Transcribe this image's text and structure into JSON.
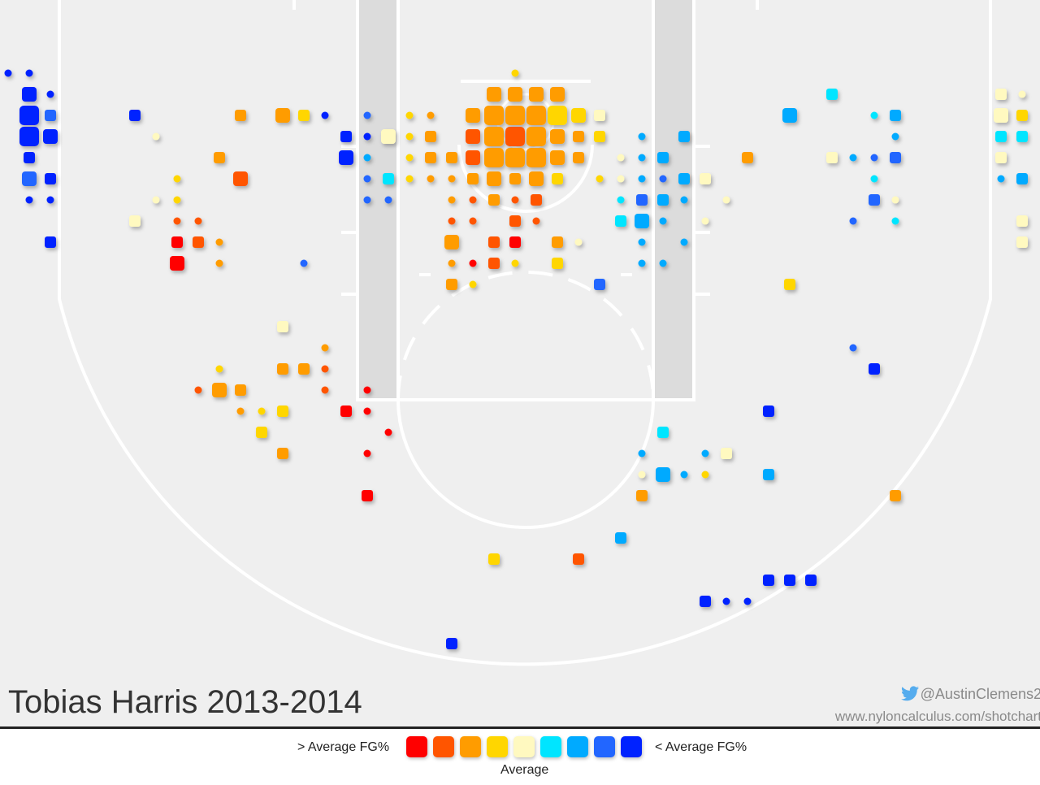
{
  "title": "Tobias Harris 2013-2014",
  "credits": {
    "twitter": "@AustinClemens2",
    "website": "www.nyloncalculus.com/shotchart"
  },
  "legend": {
    "high_label": "> Average FG%",
    "low_label": "< Average FG%",
    "mid_label": "Average"
  },
  "colors": {
    "scale": [
      "#ff0000",
      "#ff5500",
      "#ff9c00",
      "#ffd600",
      "#fff9c0",
      "#00e5ff",
      "#00aaff",
      "#2266ff",
      "#0022ff"
    ],
    "court_background": "#efefef",
    "paint": "#dcdcdc",
    "lines": "#ffffff"
  },
  "chart_data": {
    "type": "scatter",
    "description": "Hexbin-style shot chart; each mark is a shot zone. color = FG% bucket index (0 = well above average, 4 = average, 8 = well below average); size = shot-frequency bucket (0 smallest, 3 largest). x/y given in court grid units (x: 0-48 across the court, y: 0-34 from baseline toward half court).",
    "x_range": [
      0,
      48
    ],
    "y_range": [
      0,
      34
    ],
    "points": [
      {
        "x": 0,
        "y": 3,
        "c": 8,
        "s": 0
      },
      {
        "x": 1,
        "y": 3,
        "c": 8,
        "s": 0
      },
      {
        "x": 1,
        "y": 4,
        "c": 8,
        "s": 2
      },
      {
        "x": 2,
        "y": 4,
        "c": 8,
        "s": 0
      },
      {
        "x": 1,
        "y": 5,
        "c": 8,
        "s": 3
      },
      {
        "x": 2,
        "y": 5,
        "c": 7,
        "s": 1
      },
      {
        "x": 1,
        "y": 6,
        "c": 8,
        "s": 3
      },
      {
        "x": 2,
        "y": 6,
        "c": 8,
        "s": 2
      },
      {
        "x": 1,
        "y": 7,
        "c": 8,
        "s": 1
      },
      {
        "x": 1,
        "y": 8,
        "c": 7,
        "s": 2
      },
      {
        "x": 2,
        "y": 8,
        "c": 8,
        "s": 1
      },
      {
        "x": 1,
        "y": 9,
        "c": 8,
        "s": 0
      },
      {
        "x": 2,
        "y": 9,
        "c": 8,
        "s": 0
      },
      {
        "x": 2,
        "y": 11,
        "c": 8,
        "s": 1
      },
      {
        "x": 6,
        "y": 5,
        "c": 8,
        "s": 1
      },
      {
        "x": 7,
        "y": 6,
        "c": 4,
        "s": 0
      },
      {
        "x": 6,
        "y": 10,
        "c": 4,
        "s": 1
      },
      {
        "x": 7,
        "y": 9,
        "c": 4,
        "s": 0
      },
      {
        "x": 8,
        "y": 8,
        "c": 3,
        "s": 0
      },
      {
        "x": 8,
        "y": 9,
        "c": 3,
        "s": 0
      },
      {
        "x": 8,
        "y": 10,
        "c": 1,
        "s": 0
      },
      {
        "x": 9,
        "y": 10,
        "c": 1,
        "s": 0
      },
      {
        "x": 8,
        "y": 11,
        "c": 0,
        "s": 1
      },
      {
        "x": 9,
        "y": 11,
        "c": 1,
        "s": 1
      },
      {
        "x": 8,
        "y": 12,
        "c": 0,
        "s": 2
      },
      {
        "x": 10,
        "y": 11,
        "c": 2,
        "s": 0
      },
      {
        "x": 10,
        "y": 12,
        "c": 2,
        "s": 0
      },
      {
        "x": 10,
        "y": 7,
        "c": 2,
        "s": 1
      },
      {
        "x": 11,
        "y": 5,
        "c": 2,
        "s": 1
      },
      {
        "x": 11,
        "y": 8,
        "c": 1,
        "s": 2
      },
      {
        "x": 13,
        "y": 5,
        "c": 2,
        "s": 2
      },
      {
        "x": 14,
        "y": 5,
        "c": 3,
        "s": 1
      },
      {
        "x": 15,
        "y": 5,
        "c": 8,
        "s": 0
      },
      {
        "x": 14,
        "y": 12,
        "c": 7,
        "s": 0
      },
      {
        "x": 16,
        "y": 6,
        "c": 8,
        "s": 1
      },
      {
        "x": 16,
        "y": 7,
        "c": 8,
        "s": 2
      },
      {
        "x": 17,
        "y": 5,
        "c": 7,
        "s": 0
      },
      {
        "x": 17,
        "y": 6,
        "c": 8,
        "s": 0
      },
      {
        "x": 17,
        "y": 7,
        "c": 6,
        "s": 0
      },
      {
        "x": 17,
        "y": 8,
        "c": 7,
        "s": 0
      },
      {
        "x": 17,
        "y": 9,
        "c": 7,
        "s": 0
      },
      {
        "x": 18,
        "y": 6,
        "c": 4,
        "s": 2
      },
      {
        "x": 18,
        "y": 8,
        "c": 5,
        "s": 1
      },
      {
        "x": 18,
        "y": 9,
        "c": 7,
        "s": 0
      },
      {
        "x": 19,
        "y": 5,
        "c": 3,
        "s": 0
      },
      {
        "x": 19,
        "y": 6,
        "c": 3,
        "s": 0
      },
      {
        "x": 19,
        "y": 7,
        "c": 3,
        "s": 0
      },
      {
        "x": 19,
        "y": 8,
        "c": 3,
        "s": 0
      },
      {
        "x": 20,
        "y": 5,
        "c": 2,
        "s": 0
      },
      {
        "x": 20,
        "y": 6,
        "c": 2,
        "s": 1
      },
      {
        "x": 20,
        "y": 7,
        "c": 2,
        "s": 1
      },
      {
        "x": 20,
        "y": 8,
        "c": 2,
        "s": 0
      },
      {
        "x": 21,
        "y": 7,
        "c": 2,
        "s": 1
      },
      {
        "x": 21,
        "y": 8,
        "c": 2,
        "s": 0
      },
      {
        "x": 21,
        "y": 9,
        "c": 2,
        "s": 0
      },
      {
        "x": 21,
        "y": 10,
        "c": 1,
        "s": 0
      },
      {
        "x": 21,
        "y": 11,
        "c": 2,
        "s": 2
      },
      {
        "x": 21,
        "y": 12,
        "c": 2,
        "s": 0
      },
      {
        "x": 21,
        "y": 13,
        "c": 2,
        "s": 1
      },
      {
        "x": 22,
        "y": 5,
        "c": 2,
        "s": 2
      },
      {
        "x": 22,
        "y": 6,
        "c": 1,
        "s": 2
      },
      {
        "x": 22,
        "y": 7,
        "c": 1,
        "s": 2
      },
      {
        "x": 22,
        "y": 8,
        "c": 2,
        "s": 1
      },
      {
        "x": 22,
        "y": 9,
        "c": 1,
        "s": 0
      },
      {
        "x": 22,
        "y": 10,
        "c": 1,
        "s": 0
      },
      {
        "x": 22,
        "y": 12,
        "c": 0,
        "s": 0
      },
      {
        "x": 22,
        "y": 13,
        "c": 3,
        "s": 0
      },
      {
        "x": 23,
        "y": 4,
        "c": 2,
        "s": 2
      },
      {
        "x": 23,
        "y": 5,
        "c": 2,
        "s": 3
      },
      {
        "x": 23,
        "y": 6,
        "c": 2,
        "s": 3
      },
      {
        "x": 23,
        "y": 7,
        "c": 2,
        "s": 3
      },
      {
        "x": 23,
        "y": 8,
        "c": 2,
        "s": 2
      },
      {
        "x": 23,
        "y": 9,
        "c": 2,
        "s": 1
      },
      {
        "x": 23,
        "y": 11,
        "c": 1,
        "s": 1
      },
      {
        "x": 23,
        "y": 12,
        "c": 1,
        "s": 1
      },
      {
        "x": 24,
        "y": 3,
        "c": 3,
        "s": 0
      },
      {
        "x": 24,
        "y": 4,
        "c": 2,
        "s": 2
      },
      {
        "x": 24,
        "y": 5,
        "c": 2,
        "s": 3
      },
      {
        "x": 24,
        "y": 6,
        "c": 1,
        "s": 3
      },
      {
        "x": 24,
        "y": 7,
        "c": 2,
        "s": 3
      },
      {
        "x": 24,
        "y": 8,
        "c": 2,
        "s": 1
      },
      {
        "x": 24,
        "y": 9,
        "c": 1,
        "s": 0
      },
      {
        "x": 24,
        "y": 10,
        "c": 1,
        "s": 1
      },
      {
        "x": 24,
        "y": 11,
        "c": 0,
        "s": 1
      },
      {
        "x": 24,
        "y": 12,
        "c": 3,
        "s": 0
      },
      {
        "x": 25,
        "y": 4,
        "c": 2,
        "s": 2
      },
      {
        "x": 25,
        "y": 5,
        "c": 2,
        "s": 3
      },
      {
        "x": 25,
        "y": 6,
        "c": 2,
        "s": 3
      },
      {
        "x": 25,
        "y": 7,
        "c": 2,
        "s": 3
      },
      {
        "x": 25,
        "y": 8,
        "c": 2,
        "s": 2
      },
      {
        "x": 25,
        "y": 9,
        "c": 1,
        "s": 1
      },
      {
        "x": 25,
        "y": 10,
        "c": 1,
        "s": 0
      },
      {
        "x": 26,
        "y": 4,
        "c": 2,
        "s": 2
      },
      {
        "x": 26,
        "y": 5,
        "c": 3,
        "s": 3
      },
      {
        "x": 26,
        "y": 6,
        "c": 2,
        "s": 2
      },
      {
        "x": 26,
        "y": 7,
        "c": 2,
        "s": 2
      },
      {
        "x": 26,
        "y": 8,
        "c": 3,
        "s": 1
      },
      {
        "x": 26,
        "y": 11,
        "c": 2,
        "s": 1
      },
      {
        "x": 26,
        "y": 12,
        "c": 3,
        "s": 1
      },
      {
        "x": 27,
        "y": 5,
        "c": 3,
        "s": 2
      },
      {
        "x": 27,
        "y": 6,
        "c": 2,
        "s": 1
      },
      {
        "x": 27,
        "y": 7,
        "c": 2,
        "s": 1
      },
      {
        "x": 27,
        "y": 11,
        "c": 4,
        "s": 0
      },
      {
        "x": 28,
        "y": 5,
        "c": 4,
        "s": 1
      },
      {
        "x": 28,
        "y": 6,
        "c": 3,
        "s": 1
      },
      {
        "x": 28,
        "y": 8,
        "c": 3,
        "s": 0
      },
      {
        "x": 28,
        "y": 13,
        "c": 7,
        "s": 1
      },
      {
        "x": 29,
        "y": 7,
        "c": 4,
        "s": 0
      },
      {
        "x": 29,
        "y": 8,
        "c": 4,
        "s": 0
      },
      {
        "x": 29,
        "y": 9,
        "c": 5,
        "s": 0
      },
      {
        "x": 29,
        "y": 10,
        "c": 5,
        "s": 1
      },
      {
        "x": 30,
        "y": 6,
        "c": 6,
        "s": 0
      },
      {
        "x": 30,
        "y": 7,
        "c": 6,
        "s": 0
      },
      {
        "x": 30,
        "y": 8,
        "c": 6,
        "s": 0
      },
      {
        "x": 30,
        "y": 9,
        "c": 7,
        "s": 1
      },
      {
        "x": 30,
        "y": 10,
        "c": 6,
        "s": 2
      },
      {
        "x": 30,
        "y": 11,
        "c": 6,
        "s": 0
      },
      {
        "x": 30,
        "y": 12,
        "c": 6,
        "s": 0
      },
      {
        "x": 31,
        "y": 7,
        "c": 6,
        "s": 1
      },
      {
        "x": 31,
        "y": 8,
        "c": 7,
        "s": 0
      },
      {
        "x": 31,
        "y": 9,
        "c": 6,
        "s": 1
      },
      {
        "x": 31,
        "y": 10,
        "c": 6,
        "s": 0
      },
      {
        "x": 31,
        "y": 12,
        "c": 6,
        "s": 0
      },
      {
        "x": 32,
        "y": 6,
        "c": 6,
        "s": 1
      },
      {
        "x": 32,
        "y": 8,
        "c": 6,
        "s": 1
      },
      {
        "x": 32,
        "y": 9,
        "c": 6,
        "s": 0
      },
      {
        "x": 32,
        "y": 11,
        "c": 6,
        "s": 0
      },
      {
        "x": 33,
        "y": 8,
        "c": 4,
        "s": 1
      },
      {
        "x": 33,
        "y": 10,
        "c": 4,
        "s": 0
      },
      {
        "x": 34,
        "y": 9,
        "c": 4,
        "s": 0
      },
      {
        "x": 35,
        "y": 7,
        "c": 2,
        "s": 1
      },
      {
        "x": 37,
        "y": 5,
        "c": 6,
        "s": 2
      },
      {
        "x": 37,
        "y": 13,
        "c": 3,
        "s": 1
      },
      {
        "x": 39,
        "y": 4,
        "c": 5,
        "s": 1
      },
      {
        "x": 39,
        "y": 7,
        "c": 4,
        "s": 1
      },
      {
        "x": 40,
        "y": 7,
        "c": 6,
        "s": 0
      },
      {
        "x": 40,
        "y": 10,
        "c": 7,
        "s": 0
      },
      {
        "x": 41,
        "y": 5,
        "c": 5,
        "s": 0
      },
      {
        "x": 41,
        "y": 7,
        "c": 7,
        "s": 0
      },
      {
        "x": 41,
        "y": 8,
        "c": 5,
        "s": 0
      },
      {
        "x": 41,
        "y": 9,
        "c": 7,
        "s": 1
      },
      {
        "x": 42,
        "y": 5,
        "c": 6,
        "s": 1
      },
      {
        "x": 42,
        "y": 6,
        "c": 6,
        "s": 0
      },
      {
        "x": 42,
        "y": 7,
        "c": 7,
        "s": 1
      },
      {
        "x": 42,
        "y": 9,
        "c": 4,
        "s": 0
      },
      {
        "x": 42,
        "y": 10,
        "c": 5,
        "s": 0
      },
      {
        "x": 47,
        "y": 4,
        "c": 4,
        "s": 1
      },
      {
        "x": 48,
        "y": 4,
        "c": 4,
        "s": 0
      },
      {
        "x": 47,
        "y": 5,
        "c": 4,
        "s": 2
      },
      {
        "x": 48,
        "y": 5,
        "c": 3,
        "s": 1
      },
      {
        "x": 47,
        "y": 6,
        "c": 5,
        "s": 1
      },
      {
        "x": 48,
        "y": 6,
        "c": 5,
        "s": 1
      },
      {
        "x": 47,
        "y": 7,
        "c": 4,
        "s": 1
      },
      {
        "x": 47,
        "y": 8,
        "c": 6,
        "s": 0
      },
      {
        "x": 48,
        "y": 8,
        "c": 6,
        "s": 1
      },
      {
        "x": 48,
        "y": 10,
        "c": 4,
        "s": 1
      },
      {
        "x": 48,
        "y": 11,
        "c": 4,
        "s": 1
      },
      {
        "x": 13,
        "y": 15,
        "c": 4,
        "s": 1
      },
      {
        "x": 15,
        "y": 16,
        "c": 2,
        "s": 0
      },
      {
        "x": 13,
        "y": 17,
        "c": 2,
        "s": 1
      },
      {
        "x": 14,
        "y": 17,
        "c": 2,
        "s": 1
      },
      {
        "x": 15,
        "y": 17,
        "c": 1,
        "s": 0
      },
      {
        "x": 10,
        "y": 17,
        "c": 3,
        "s": 0
      },
      {
        "x": 9,
        "y": 18,
        "c": 1,
        "s": 0
      },
      {
        "x": 10,
        "y": 18,
        "c": 2,
        "s": 2
      },
      {
        "x": 11,
        "y": 18,
        "c": 2,
        "s": 1
      },
      {
        "x": 15,
        "y": 18,
        "c": 1,
        "s": 0
      },
      {
        "x": 17,
        "y": 18,
        "c": 0,
        "s": 0
      },
      {
        "x": 11,
        "y": 19,
        "c": 2,
        "s": 0
      },
      {
        "x": 12,
        "y": 19,
        "c": 3,
        "s": 0
      },
      {
        "x": 13,
        "y": 19,
        "c": 3,
        "s": 1
      },
      {
        "x": 16,
        "y": 19,
        "c": 0,
        "s": 1
      },
      {
        "x": 17,
        "y": 19,
        "c": 0,
        "s": 0
      },
      {
        "x": 12,
        "y": 20,
        "c": 3,
        "s": 1
      },
      {
        "x": 18,
        "y": 20,
        "c": 0,
        "s": 0
      },
      {
        "x": 13,
        "y": 21,
        "c": 2,
        "s": 1
      },
      {
        "x": 17,
        "y": 21,
        "c": 0,
        "s": 0
      },
      {
        "x": 17,
        "y": 23,
        "c": 0,
        "s": 1
      },
      {
        "x": 40,
        "y": 16,
        "c": 7,
        "s": 0
      },
      {
        "x": 41,
        "y": 17,
        "c": 8,
        "s": 1
      },
      {
        "x": 36,
        "y": 19,
        "c": 8,
        "s": 1
      },
      {
        "x": 31,
        "y": 20,
        "c": 5,
        "s": 1
      },
      {
        "x": 30,
        "y": 21,
        "c": 6,
        "s": 0
      },
      {
        "x": 33,
        "y": 21,
        "c": 6,
        "s": 0
      },
      {
        "x": 34,
        "y": 21,
        "c": 4,
        "s": 1
      },
      {
        "x": 30,
        "y": 22,
        "c": 4,
        "s": 0
      },
      {
        "x": 31,
        "y": 22,
        "c": 6,
        "s": 2
      },
      {
        "x": 32,
        "y": 22,
        "c": 6,
        "s": 0
      },
      {
        "x": 33,
        "y": 22,
        "c": 3,
        "s": 0
      },
      {
        "x": 36,
        "y": 22,
        "c": 6,
        "s": 1
      },
      {
        "x": 30,
        "y": 23,
        "c": 2,
        "s": 1
      },
      {
        "x": 42,
        "y": 23,
        "c": 2,
        "s": 1
      },
      {
        "x": 29,
        "y": 25,
        "c": 6,
        "s": 1
      },
      {
        "x": 23,
        "y": 26,
        "c": 3,
        "s": 1
      },
      {
        "x": 27,
        "y": 26,
        "c": 1,
        "s": 1
      },
      {
        "x": 36,
        "y": 27,
        "c": 8,
        "s": 1
      },
      {
        "x": 37,
        "y": 27,
        "c": 8,
        "s": 1
      },
      {
        "x": 38,
        "y": 27,
        "c": 8,
        "s": 1
      },
      {
        "x": 33,
        "y": 28,
        "c": 8,
        "s": 1
      },
      {
        "x": 34,
        "y": 28,
        "c": 8,
        "s": 0
      },
      {
        "x": 35,
        "y": 28,
        "c": 8,
        "s": 0
      },
      {
        "x": 21,
        "y": 30,
        "c": 8,
        "s": 1
      }
    ]
  }
}
